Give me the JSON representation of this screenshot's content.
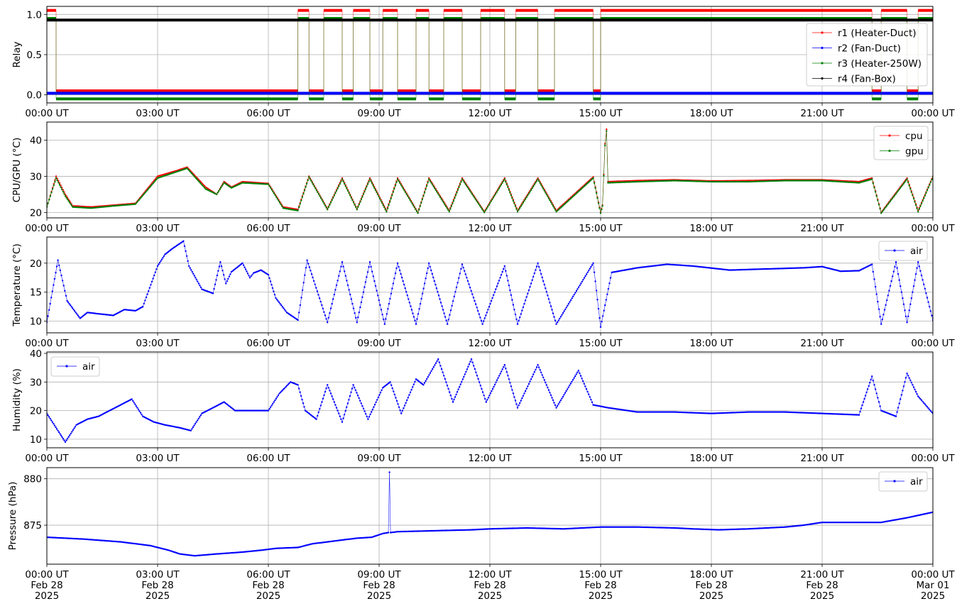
{
  "chart_data": [
    {
      "type": "line",
      "ylabel": "Relay",
      "x_ticks": [
        "00:00 UT",
        "03:00 UT",
        "06:00 UT",
        "09:00 UT",
        "12:00 UT",
        "15:00 UT",
        "18:00 UT",
        "21:00 UT",
        "00:00 UT"
      ],
      "x_range_hours": [
        0,
        24
      ],
      "ylim": [
        -0.1,
        1.1
      ],
      "y_ticks": [
        "0.0",
        "0.5",
        "1.0"
      ],
      "y_tick_values": [
        0,
        0.5,
        1.0
      ],
      "grid": true,
      "legend_loc": "center-right",
      "series": [
        {
          "name": "r1 (Heater-Duct)",
          "color": "#ff0000",
          "offset": 0.05,
          "on_intervals": [
            [
              0,
              0.25
            ],
            [
              6.8,
              7.1
            ],
            [
              7.5,
              8.0
            ],
            [
              8.3,
              8.75
            ],
            [
              9.1,
              9.5
            ],
            [
              10.0,
              10.35
            ],
            [
              10.75,
              11.25
            ],
            [
              11.75,
              12.4
            ],
            [
              12.7,
              13.3
            ],
            [
              13.75,
              14.8
            ],
            [
              15.0,
              22.35
            ],
            [
              22.6,
              23.3
            ],
            [
              23.6,
              24.0
            ]
          ]
        },
        {
          "name": "r2 (Fan-Duct)",
          "color": "#0000ff",
          "offset": 0.02,
          "on_intervals": []
        },
        {
          "name": "r3 (Heater-250W)",
          "color": "#008000",
          "offset": -0.05,
          "on_intervals": [
            [
              0,
              0.25
            ],
            [
              6.8,
              7.1
            ],
            [
              7.5,
              8.0
            ],
            [
              8.3,
              8.75
            ],
            [
              9.1,
              9.5
            ],
            [
              10.0,
              10.35
            ],
            [
              10.75,
              11.25
            ],
            [
              11.75,
              12.4
            ],
            [
              12.7,
              13.3
            ],
            [
              13.75,
              14.8
            ],
            [
              15.0,
              22.35
            ],
            [
              22.6,
              23.3
            ],
            [
              23.6,
              24.0
            ]
          ]
        },
        {
          "name": "r4 (Fan-Box)",
          "color": "#000000",
          "offset": -0.07,
          "on_intervals": [
            [
              0,
              24
            ]
          ]
        }
      ]
    },
    {
      "type": "line",
      "ylabel": "CPU/GPU (°C)",
      "x_ticks": [
        "00:00 UT",
        "03:00 UT",
        "06:00 UT",
        "09:00 UT",
        "12:00 UT",
        "15:00 UT",
        "18:00 UT",
        "21:00 UT",
        "00:00 UT"
      ],
      "ylim": [
        18.5,
        45
      ],
      "y_ticks": [
        "20",
        "30",
        "40"
      ],
      "y_tick_values": [
        20,
        30,
        40
      ],
      "grid": true,
      "legend_loc": "top-right",
      "series": [
        {
          "name": "cpu",
          "color": "#ff0000",
          "x": [
            0,
            0.25,
            0.5,
            0.7,
            1.2,
            1.8,
            2.4,
            3.0,
            3.5,
            3.8,
            4.3,
            4.6,
            4.8,
            5.0,
            5.3,
            6.0,
            6.4,
            6.8,
            7.1,
            7.6,
            8.0,
            8.4,
            8.75,
            9.2,
            9.5,
            10.05,
            10.35,
            10.9,
            11.25,
            11.85,
            12.4,
            12.75,
            13.3,
            13.8,
            14.8,
            15.0,
            15.05,
            15.12,
            15.16,
            15.2,
            16,
            17,
            18,
            19,
            20,
            21,
            22,
            22.35,
            22.6,
            23.3,
            23.6,
            24.0
          ],
          "y": [
            21.5,
            30,
            25,
            21.8,
            21.5,
            22,
            22.5,
            30,
            31.5,
            32.5,
            27,
            25,
            28.5,
            27,
            28.5,
            28,
            21.5,
            20.8,
            30,
            21,
            29.5,
            21,
            29.5,
            20.5,
            29.5,
            20,
            29.5,
            20.5,
            29.5,
            20.2,
            29.5,
            20.5,
            29.5,
            20.5,
            29.8,
            20,
            22,
            39,
            43,
            28.5,
            28.8,
            29,
            28.7,
            28.8,
            29,
            29,
            28.5,
            29.5,
            20,
            29.5,
            20.5,
            30
          ]
        },
        {
          "name": "gpu",
          "color": "#008000",
          "x": [
            0,
            0.25,
            0.5,
            0.7,
            1.2,
            1.8,
            2.4,
            3.0,
            3.5,
            3.8,
            4.3,
            4.6,
            4.8,
            5.0,
            5.3,
            6.0,
            6.4,
            6.8,
            7.1,
            7.6,
            8.0,
            8.4,
            8.75,
            9.2,
            9.5,
            10.05,
            10.35,
            10.9,
            11.25,
            11.85,
            12.4,
            12.75,
            13.3,
            13.8,
            14.8,
            15.0,
            15.05,
            15.12,
            15.16,
            15.2,
            16,
            17,
            18,
            19,
            20,
            21,
            22,
            22.35,
            22.6,
            23.3,
            23.6,
            24.0
          ],
          "y": [
            21.5,
            29.5,
            24.5,
            21.5,
            21.2,
            21.8,
            22.3,
            29.5,
            31.2,
            32.2,
            26.5,
            25,
            28.2,
            26.8,
            28.2,
            27.8,
            21.2,
            20.5,
            29.8,
            20.8,
            29.2,
            20.8,
            29.2,
            20.2,
            29.2,
            19.8,
            29.2,
            20.2,
            29.2,
            20,
            29.2,
            20.2,
            29.2,
            20.2,
            29.5,
            19.8,
            21.8,
            38.5,
            42.5,
            28.2,
            28.5,
            28.8,
            28.5,
            28.5,
            28.8,
            28.8,
            28.2,
            29.2,
            19.8,
            29.2,
            20.2,
            29.8
          ]
        }
      ]
    },
    {
      "type": "line",
      "ylabel": "Temperature (°C)",
      "x_ticks": [
        "00:00 UT",
        "03:00 UT",
        "06:00 UT",
        "09:00 UT",
        "12:00 UT",
        "15:00 UT",
        "18:00 UT",
        "21:00 UT",
        "00:00 UT"
      ],
      "ylim": [
        8,
        24.5
      ],
      "y_ticks": [
        "10",
        "15",
        "20"
      ],
      "y_tick_values": [
        10,
        15,
        20
      ],
      "grid": true,
      "legend_loc": "top-right",
      "series": [
        {
          "name": "air",
          "color": "#0000ff",
          "x": [
            0,
            0.3,
            0.55,
            0.9,
            1.1,
            1.5,
            1.8,
            2.1,
            2.4,
            2.6,
            3.0,
            3.2,
            3.4,
            3.7,
            3.85,
            4.2,
            4.5,
            4.7,
            4.85,
            5.0,
            5.3,
            5.5,
            5.6,
            5.8,
            6.0,
            6.2,
            6.5,
            6.8,
            7.05,
            7.6,
            8.0,
            8.4,
            8.75,
            9.15,
            9.5,
            10.0,
            10.35,
            10.85,
            11.25,
            11.8,
            12.4,
            12.75,
            13.3,
            13.8,
            14.8,
            15.0,
            15.3,
            16,
            16.8,
            17.5,
            18.5,
            19.5,
            20.5,
            21.0,
            21.5,
            22.0,
            22.35,
            22.6,
            23.0,
            23.3,
            23.6,
            24.0
          ],
          "y": [
            9.8,
            20.5,
            13.5,
            10.5,
            11.5,
            11.2,
            11.0,
            12.0,
            11.8,
            12.5,
            19.5,
            21.5,
            22.5,
            23.8,
            19.5,
            15.5,
            14.8,
            20.2,
            16.5,
            18.5,
            20.0,
            17.5,
            18.3,
            18.8,
            18.0,
            14.0,
            11.5,
            10.2,
            20.5,
            9.8,
            20.2,
            9.8,
            20.2,
            9.5,
            20.0,
            9.5,
            20.0,
            9.5,
            19.8,
            9.5,
            19.5,
            9.5,
            20.0,
            9.5,
            20.0,
            9.0,
            18.4,
            19.2,
            19.8,
            19.5,
            18.8,
            19.0,
            19.2,
            19.4,
            18.6,
            18.7,
            19.8,
            9.5,
            20.2,
            9.8,
            20.2,
            10.2
          ]
        }
      ]
    },
    {
      "type": "line",
      "ylabel": "Humidity (%)",
      "x_ticks": [
        "00:00 UT",
        "03:00 UT",
        "06:00 UT",
        "09:00 UT",
        "12:00 UT",
        "15:00 UT",
        "18:00 UT",
        "21:00 UT",
        "00:00 UT"
      ],
      "ylim": [
        7,
        40.5
      ],
      "y_ticks": [
        "10",
        "20",
        "30",
        "40"
      ],
      "y_tick_values": [
        10,
        20,
        30,
        40
      ],
      "grid": true,
      "legend_loc": "top-left",
      "series": [
        {
          "name": "air",
          "color": "#0000ff",
          "x": [
            0,
            0.15,
            0.3,
            0.5,
            0.8,
            1.1,
            1.4,
            1.7,
            2.0,
            2.3,
            2.6,
            2.9,
            3.2,
            3.6,
            3.9,
            4.2,
            4.5,
            4.8,
            5.1,
            5.5,
            6.0,
            6.3,
            6.6,
            6.8,
            7.0,
            7.3,
            7.6,
            8.0,
            8.3,
            8.7,
            9.1,
            9.3,
            9.6,
            10.0,
            10.2,
            10.6,
            11.0,
            11.5,
            11.9,
            12.4,
            12.75,
            13.3,
            13.8,
            14.4,
            14.8,
            15.2,
            16,
            17,
            18,
            19,
            20,
            21,
            22.0,
            22.35,
            22.6,
            23.0,
            23.3,
            23.6,
            24.0
          ],
          "y": [
            19,
            16,
            13,
            9,
            15,
            17,
            18,
            20,
            22,
            24,
            18,
            16,
            15,
            14,
            13,
            19,
            21,
            23,
            20,
            20,
            20,
            26,
            30,
            29,
            20,
            17,
            29,
            16,
            29,
            17,
            28,
            30,
            19,
            31,
            29,
            38,
            23,
            38,
            23,
            36,
            21,
            36,
            21,
            34,
            22,
            21,
            19.5,
            19.5,
            19,
            19.5,
            19.5,
            19,
            18.5,
            32,
            20,
            18,
            33,
            25,
            19
          ]
        }
      ]
    },
    {
      "type": "line",
      "ylabel": "Pressure (hPa)",
      "x_ticks": [
        "00:00 UT\nFeb 28\n2025",
        "03:00 UT\nFeb 28\n2025",
        "06:00 UT\nFeb 28\n2025",
        "09:00 UT\nFeb 28\n2025",
        "12:00 UT\nFeb 28\n2025",
        "15:00 UT\nFeb 28\n2025",
        "18:00 UT\nFeb 28\n2025",
        "21:00 UT\nFeb 28\n2025",
        "00:00 UT\nMar 01\n2025"
      ],
      "ylim": [
        870.8,
        881.2
      ],
      "y_ticks": [
        "875",
        "880"
      ],
      "y_tick_values": [
        875,
        880
      ],
      "grid": true,
      "legend_loc": "top-right",
      "series": [
        {
          "name": "air",
          "color": "#0000ff",
          "x": [
            0,
            1.0,
            2.0,
            2.8,
            3.3,
            3.6,
            4.0,
            4.6,
            5.3,
            5.8,
            6.2,
            6.8,
            7.2,
            7.8,
            8.4,
            8.8,
            9.1,
            9.25,
            9.28,
            9.31,
            9.5,
            10.5,
            11.5,
            12.0,
            13.0,
            14.0,
            15.0,
            16.0,
            17.0,
            17.5,
            18.2,
            19.0,
            20.0,
            20.5,
            21.0,
            22.0,
            22.6,
            23.3,
            24.0
          ],
          "y": [
            873.7,
            873.5,
            873.2,
            872.8,
            872.3,
            871.9,
            871.7,
            871.9,
            872.1,
            872.3,
            872.5,
            872.6,
            873.0,
            873.3,
            873.6,
            873.7,
            874.1,
            874.2,
            880.7,
            874.2,
            874.3,
            874.4,
            874.5,
            874.6,
            874.7,
            874.6,
            874.8,
            874.8,
            874.7,
            874.6,
            874.5,
            874.6,
            874.8,
            875.0,
            875.3,
            875.3,
            875.3,
            875.8,
            876.4
          ]
        }
      ]
    }
  ]
}
